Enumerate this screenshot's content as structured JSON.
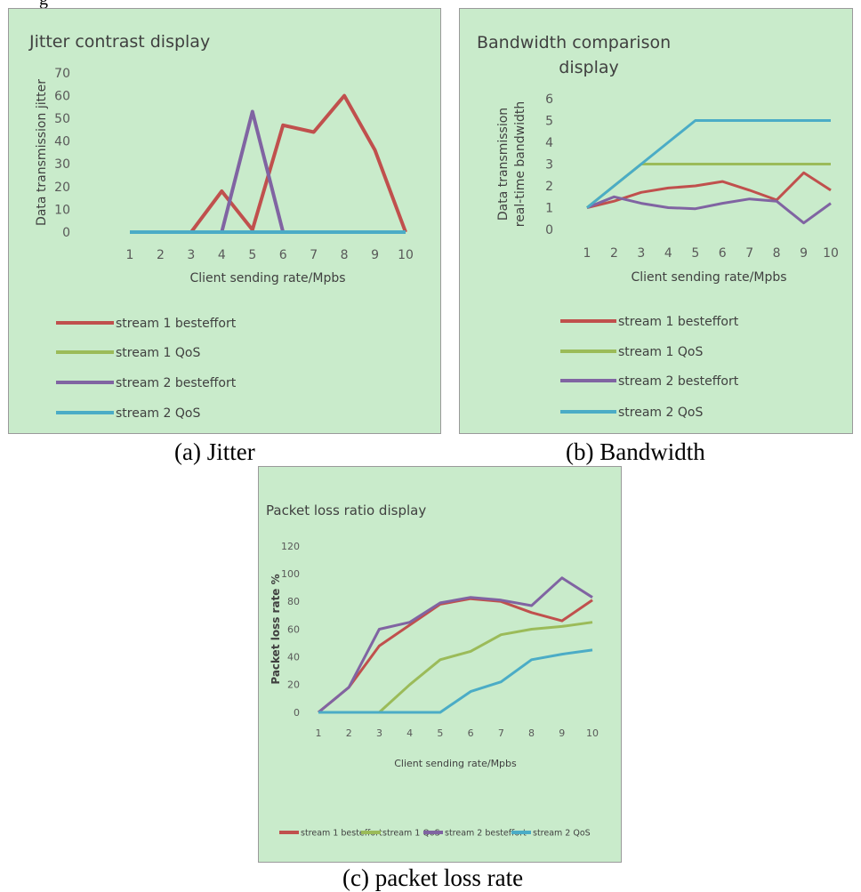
{
  "header_fragment": "g",
  "captions": {
    "a": "(a) Jitter",
    "b": "(b) Bandwidth",
    "c": "(c) packet loss rate"
  },
  "colors": {
    "background": "#c9ebcb",
    "stream1_besteffort": "#c0504d",
    "stream1_qos": "#9bbb59",
    "stream2_besteffort": "#8064a2",
    "stream2_qos": "#4bacc6"
  },
  "chart_data": [
    {
      "type": "line",
      "title": "Jitter contrast display",
      "xlabel": "Client sending rate/Mpbs",
      "ylabel": "Data transmission jitter",
      "x": [
        1,
        2,
        3,
        4,
        5,
        6,
        7,
        8,
        9,
        10
      ],
      "xlim": [
        1,
        10
      ],
      "ylim": [
        0,
        70
      ],
      "yticks": [
        0,
        10,
        20,
        30,
        40,
        50,
        60,
        70
      ],
      "legend": "bottom",
      "grid": false,
      "series": [
        {
          "name": "stream 1 besteffort",
          "values": [
            0,
            0,
            0,
            18,
            1,
            47,
            44,
            60,
            36,
            0
          ]
        },
        {
          "name": "stream 1 QoS",
          "values": [
            0,
            0,
            0,
            0,
            0,
            0,
            0,
            0,
            0,
            0
          ]
        },
        {
          "name": "stream 2 besteffort",
          "values": [
            0,
            0,
            0,
            0,
            53,
            0,
            0,
            0,
            0,
            0
          ]
        },
        {
          "name": "stream 2 QoS",
          "values": [
            0,
            0,
            0,
            0,
            0,
            0,
            0,
            0,
            0,
            0
          ]
        }
      ]
    },
    {
      "type": "line",
      "title": "Bandwidth comparison display",
      "xlabel": "Client sending rate/Mpbs",
      "ylabel": "Data transmission real-time bandwidth",
      "x": [
        1,
        2,
        3,
        4,
        5,
        6,
        7,
        8,
        9,
        10
      ],
      "xlim": [
        1,
        10
      ],
      "ylim": [
        0,
        6
      ],
      "yticks": [
        0,
        1,
        2,
        3,
        4,
        5,
        6
      ],
      "legend": "bottom",
      "grid": false,
      "series": [
        {
          "name": "stream 1 besteffort",
          "values": [
            1,
            1.3,
            1.7,
            1.9,
            2.0,
            2.2,
            1.8,
            1.35,
            2.6,
            1.8
          ]
        },
        {
          "name": "stream 1 QoS",
          "values": [
            1,
            2,
            3,
            3,
            3,
            3,
            3,
            3,
            3,
            3
          ]
        },
        {
          "name": "stream 2 besteffort",
          "values": [
            1,
            1.5,
            1.2,
            1.0,
            0.95,
            1.2,
            1.4,
            1.3,
            0.3,
            1.2
          ]
        },
        {
          "name": "stream 2 QoS",
          "values": [
            1,
            2,
            3,
            4,
            5,
            5,
            5,
            5,
            5,
            5
          ]
        }
      ]
    },
    {
      "type": "line",
      "title": "Packet loss ratio display",
      "xlabel": "Client sending rate/Mpbs",
      "ylabel": "Packet loss rate %",
      "x": [
        1,
        2,
        3,
        4,
        5,
        6,
        7,
        8,
        9,
        10
      ],
      "xlim": [
        1,
        10
      ],
      "ylim": [
        0,
        120
      ],
      "yticks": [
        0,
        20,
        40,
        60,
        80,
        100,
        120
      ],
      "legend": "bottom",
      "grid": false,
      "series": [
        {
          "name": "stream 1 besteffort",
          "values": [
            0,
            18,
            48,
            63,
            78,
            82,
            80,
            72,
            66,
            81
          ]
        },
        {
          "name": "stream 1 QoS",
          "values": [
            0,
            0,
            0,
            20,
            38,
            44,
            56,
            60,
            62,
            65
          ]
        },
        {
          "name": "stream 2 besteffort",
          "values": [
            0,
            18,
            60,
            65,
            79,
            83,
            81,
            77,
            97,
            83
          ]
        },
        {
          "name": "stream 2 QoS",
          "values": [
            0,
            0,
            0,
            0,
            0,
            15,
            22,
            38,
            42,
            45
          ]
        }
      ]
    }
  ]
}
